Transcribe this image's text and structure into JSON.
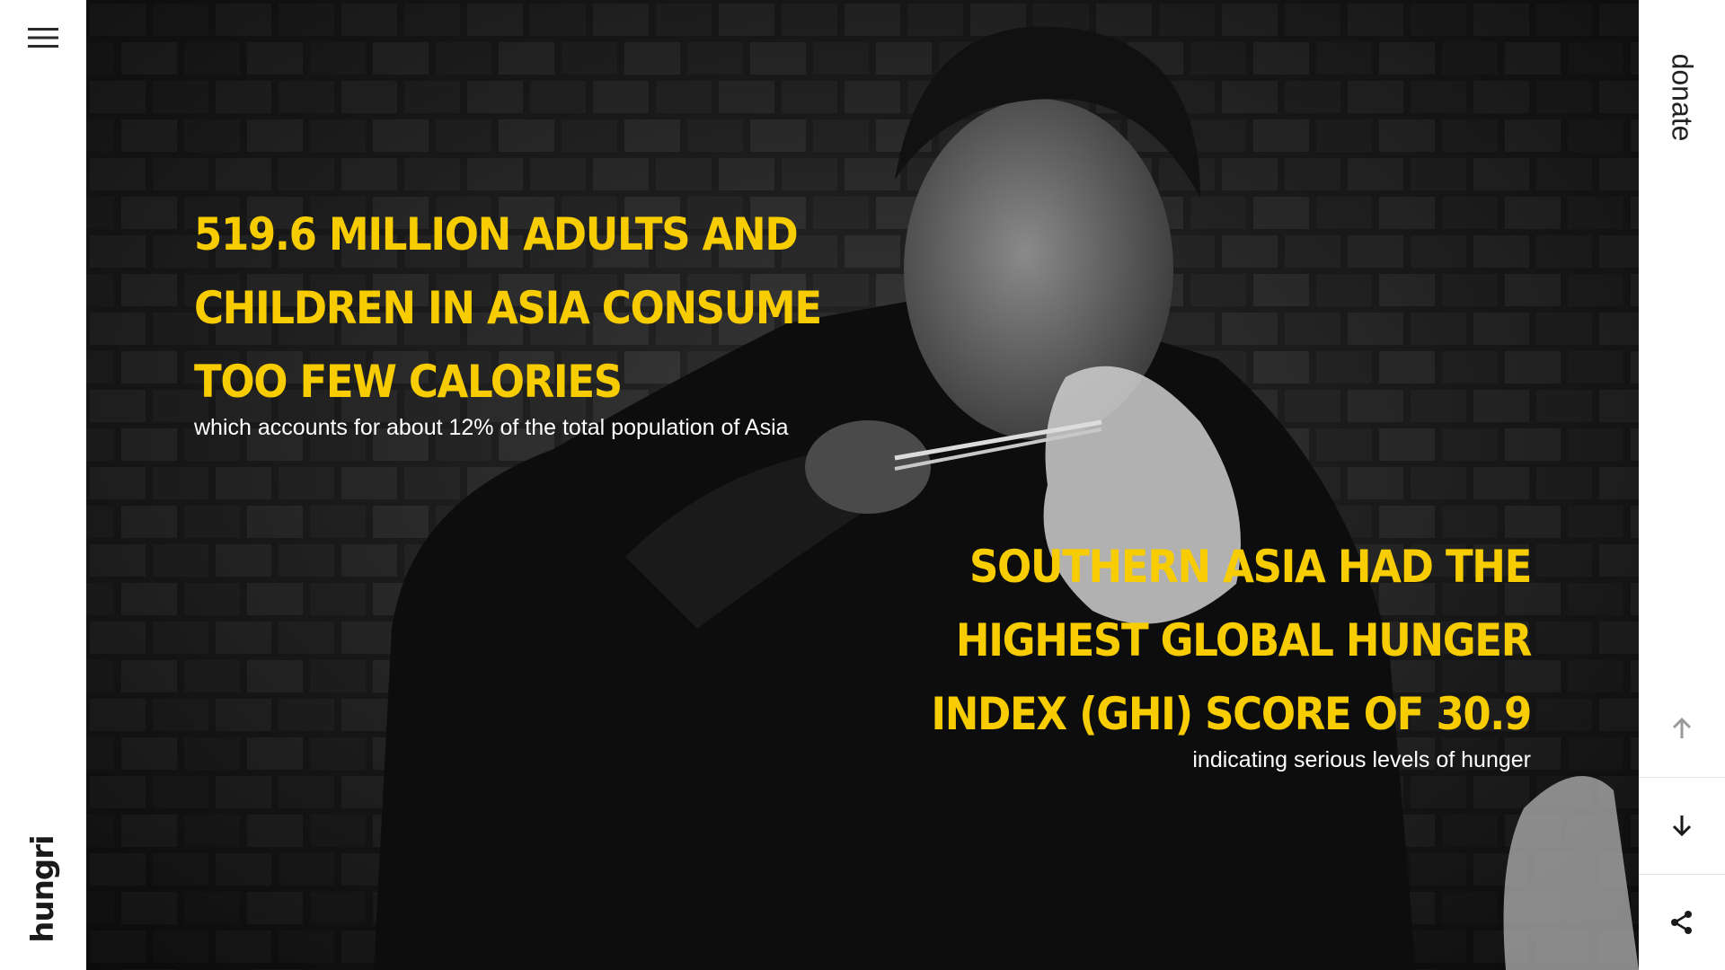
{
  "brand": {
    "name": "hungri"
  },
  "menu": {
    "icon": "hamburger-menu-icon"
  },
  "donate": {
    "label": "donate"
  },
  "stats": [
    {
      "headline": "519.6 MILLION ADULTS AND CHILDREN IN ASIA CONSUME TOO FEW CALORIES",
      "sub": "which accounts for about 12% of the total population of Asia"
    },
    {
      "headline": "SOUTHERN ASIA HAD THE HIGHEST GLOBAL HUNGER INDEX (GHI) SCORE OF 30.9",
      "sub": "indicating serious levels of hunger"
    }
  ],
  "scroll_progress": 0.42,
  "nav": {
    "up_icon": "arrow-up-icon",
    "down_icon": "arrow-down-icon",
    "share_icon": "share-icon"
  },
  "colors": {
    "accent": "#f7cc00",
    "subtext": "#ffffff"
  }
}
